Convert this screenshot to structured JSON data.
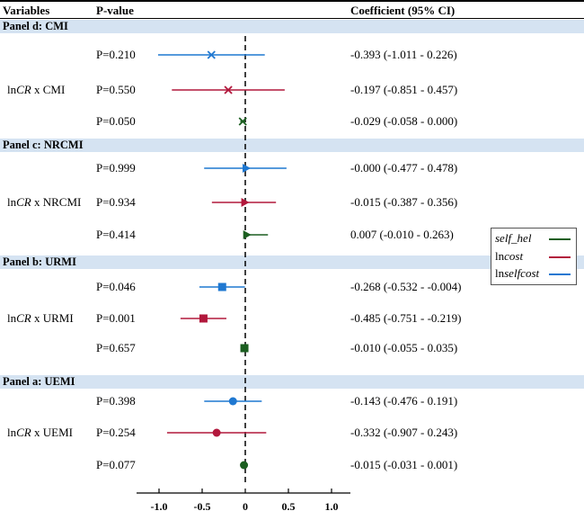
{
  "header": {
    "variables": "Variables",
    "pvalue": "P-value",
    "coef": "Coefficient (95% CI)"
  },
  "colors": {
    "self_hel": "#1b5e20",
    "lncost": "#b2183c",
    "lnselfcost": "#1f78d1",
    "band": "#d5e3f2"
  },
  "legend": {
    "items": [
      {
        "label": "self_hel",
        "color": "#1b5e20"
      },
      {
        "label_prefix": "ln",
        "label_italic": "cost",
        "color": "#b2183c"
      },
      {
        "label_prefix": "ln",
        "label_italic": "selfcost",
        "color": "#1f78d1"
      }
    ]
  },
  "chart_data": {
    "type": "forest",
    "xlim": [
      -1.25,
      1.15
    ],
    "xticks": [
      "-1.0",
      "-0.5",
      "0",
      "0.5",
      "1.0"
    ],
    "xtick_values": [
      -1.0,
      -0.5,
      0,
      0.5,
      1.0
    ],
    "reference_line": 0,
    "panels": [
      {
        "title": "Panel d: CMI",
        "row_label_prefix": "ln",
        "row_label_italic": "CR",
        "row_label_suffix": " x CMI",
        "marker": "x",
        "rows": [
          {
            "series": "lnselfcost",
            "p": "P=0.210",
            "est": -0.393,
            "lo": -1.011,
            "hi": 0.226,
            "ci_text": "-0.393 (-1.011 - 0.226)"
          },
          {
            "series": "lncost",
            "p": "P=0.550",
            "est": -0.197,
            "lo": -0.851,
            "hi": 0.457,
            "ci_text": "-0.197 (-0.851 - 0.457)"
          },
          {
            "series": "self_hel",
            "p": "P=0.050",
            "est": -0.029,
            "lo": -0.058,
            "hi": 0.0,
            "ci_text": "-0.029 (-0.058 - 0.000)"
          }
        ]
      },
      {
        "title": "Panel c: NRCMI",
        "row_label_prefix": "ln",
        "row_label_italic": "CR",
        "row_label_suffix": " x NRCMI",
        "marker": "triangle",
        "rows": [
          {
            "series": "lnselfcost",
            "p": "P=0.999",
            "est": -0.0,
            "lo": -0.477,
            "hi": 0.478,
            "ci_text": "-0.000 (-0.477 - 0.478)"
          },
          {
            "series": "lncost",
            "p": "P=0.934",
            "est": -0.015,
            "lo": -0.387,
            "hi": 0.356,
            "ci_text": "-0.015 (-0.387 - 0.356)"
          },
          {
            "series": "self_hel",
            "p": "P=0.414",
            "est": 0.007,
            "lo": -0.01,
            "hi": 0.263,
            "ci_text": "0.007 (-0.010 - 0.263)"
          }
        ]
      },
      {
        "title": "Panel b: URMI",
        "row_label_prefix": "ln",
        "row_label_italic": "CR",
        "row_label_suffix": " x URMI",
        "marker": "square",
        "rows": [
          {
            "series": "lnselfcost",
            "p": "P=0.046",
            "est": -0.268,
            "lo": -0.532,
            "hi": -0.004,
            "ci_text": "-0.268 (-0.532 - -0.004)"
          },
          {
            "series": "lncost",
            "p": "P=0.001",
            "est": -0.485,
            "lo": -0.751,
            "hi": -0.219,
            "ci_text": "-0.485 (-0.751 - -0.219)"
          },
          {
            "series": "self_hel",
            "p": "P=0.657",
            "est": -0.01,
            "lo": -0.055,
            "hi": 0.035,
            "ci_text": "-0.010 (-0.055 -  0.035)"
          }
        ]
      },
      {
        "title": "Panel a:  UEMI",
        "row_label_prefix": "ln",
        "row_label_italic": "CR",
        "row_label_suffix": " x UEMI",
        "marker": "circle",
        "rows": [
          {
            "series": "lnselfcost",
            "p": "P=0.398",
            "est": -0.143,
            "lo": -0.476,
            "hi": 0.191,
            "ci_text": "-0.143 (-0.476 - 0.191)"
          },
          {
            "series": "lncost",
            "p": "P=0.254",
            "est": -0.332,
            "lo": -0.907,
            "hi": 0.243,
            "ci_text": "-0.332 (-0.907 - 0.243)"
          },
          {
            "series": "self_hel",
            "p": "P=0.077",
            "est": -0.015,
            "lo": -0.031,
            "hi": 0.001,
            "ci_text": "-0.015 (-0.031 - 0.001)"
          }
        ]
      }
    ]
  }
}
